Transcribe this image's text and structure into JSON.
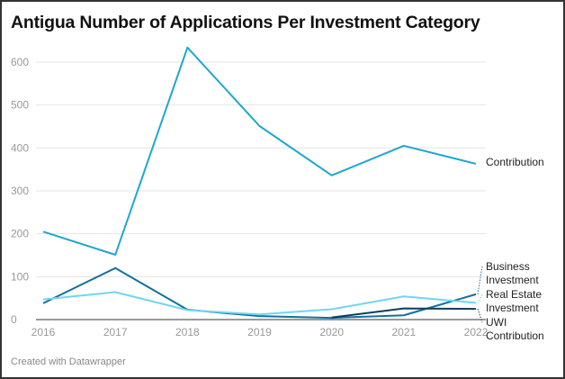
{
  "chart_data": {
    "type": "line",
    "title": "Antigua Number of Applications Per Investment Category",
    "x": [
      2016,
      2017,
      2018,
      2019,
      2020,
      2021,
      2022
    ],
    "ylim": [
      0,
      650
    ],
    "yticks": [
      0,
      100,
      200,
      300,
      400,
      500,
      600
    ],
    "grid": true,
    "legend": "direct labels at line ends",
    "series": [
      {
        "name": "Contribution",
        "label_lines": [
          "Contribution"
        ],
        "color": "#1ea6d4",
        "values": [
          205,
          151,
          634,
          451,
          336,
          405,
          363
        ]
      },
      {
        "name": "Business Investment",
        "label_lines": [
          "Business",
          "Investment"
        ],
        "color": "#16709c",
        "values": [
          38,
          120,
          23,
          8,
          4,
          10,
          59
        ]
      },
      {
        "name": "Real Estate Investment",
        "label_lines": [
          "Real Estate",
          "Investment"
        ],
        "color": "#70d5f3",
        "values": [
          47,
          64,
          22,
          12,
          24,
          54,
          39
        ]
      },
      {
        "name": "UWI Contribution",
        "label_lines": [
          "UWI",
          "Contribution"
        ],
        "color": "#0c3f60",
        "values": [
          null,
          null,
          null,
          null,
          5,
          26,
          25
        ]
      }
    ]
  },
  "footer": {
    "credit": "Created with Datawrapper"
  }
}
